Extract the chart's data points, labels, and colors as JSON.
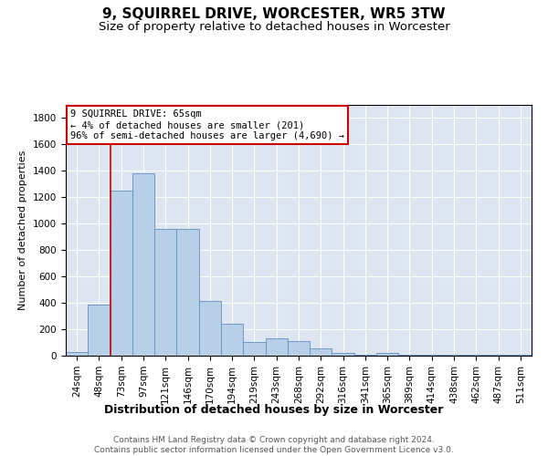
{
  "title": "9, SQUIRREL DRIVE, WORCESTER, WR5 3TW",
  "subtitle": "Size of property relative to detached houses in Worcester",
  "xlabel": "Distribution of detached houses by size in Worcester",
  "ylabel": "Number of detached properties",
  "categories": [
    "24sqm",
    "48sqm",
    "73sqm",
    "97sqm",
    "121sqm",
    "146sqm",
    "170sqm",
    "194sqm",
    "219sqm",
    "243sqm",
    "268sqm",
    "292sqm",
    "316sqm",
    "341sqm",
    "365sqm",
    "389sqm",
    "414sqm",
    "438sqm",
    "462sqm",
    "487sqm",
    "511sqm"
  ],
  "values": [
    30,
    385,
    1250,
    1380,
    960,
    960,
    415,
    240,
    105,
    130,
    110,
    55,
    20,
    5,
    20,
    5,
    5,
    5,
    5,
    5,
    5
  ],
  "bar_color": "#b8cfe8",
  "bar_edge_color": "#6090c0",
  "vline_x": 1.5,
  "vline_color": "#cc0000",
  "annotation_text": "9 SQUIRREL DRIVE: 65sqm\n← 4% of detached houses are smaller (201)\n96% of semi-detached houses are larger (4,690) →",
  "annotation_box_color": "#ffffff",
  "annotation_box_edge": "#cc0000",
  "ylim": [
    0,
    1900
  ],
  "yticks": [
    0,
    200,
    400,
    600,
    800,
    1000,
    1200,
    1400,
    1600,
    1800
  ],
  "background_color": "#dde6f0",
  "footer": "Contains HM Land Registry data © Crown copyright and database right 2024.\nContains public sector information licensed under the Open Government Licence v3.0.",
  "title_fontsize": 11,
  "subtitle_fontsize": 9.5,
  "xlabel_fontsize": 9,
  "ylabel_fontsize": 8,
  "tick_fontsize": 7.5,
  "footer_fontsize": 6.5
}
